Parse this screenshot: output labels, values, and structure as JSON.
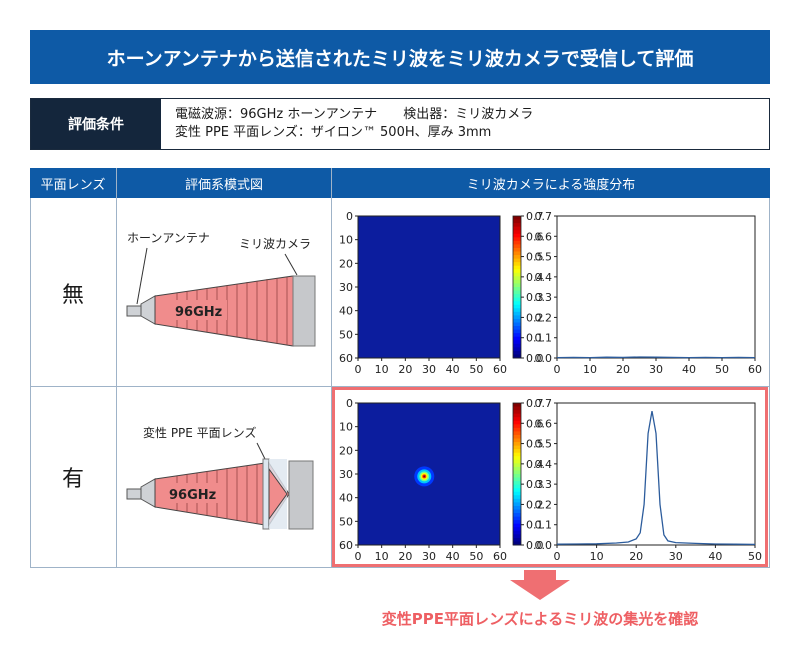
{
  "title": "ホーンアンテナから送信されたミリ波をミリ波カメラで受信して評価",
  "conditions": {
    "label": "評価条件",
    "line1_a": "電磁波源：96GHz ホーンアンテナ",
    "line1_b": "検出器：ミリ波カメラ",
    "line2": "変性 PPE 平面レンズ：ザイロン™ 500H、厚み 3mm"
  },
  "table": {
    "headers": [
      "平面レンズ",
      "評価系模式図",
      "ミリ波カメラによる強度分布"
    ],
    "rows": [
      {
        "label": "無",
        "diagram": {
          "antenna_label": "ホーンアンテナ",
          "camera_label": "ミリ波カメラ",
          "freq_label": "96GHz"
        }
      },
      {
        "label": "有",
        "diagram": {
          "lens_label": "変性 PPE 平面レンズ",
          "freq_label": "96GHz"
        }
      }
    ]
  },
  "colors": {
    "title_bg": "#0e5aa6",
    "condition_bg": "#14263c",
    "beam": "#f08c8c",
    "highlight": "#ef6f72",
    "heatmap_bg": "#0c1d9e",
    "line": "#2c5c9c"
  },
  "chart_data": [
    {
      "type": "heatmap",
      "caption": "平面レンズ 無",
      "xlim": [
        0,
        60
      ],
      "ylim": [
        0,
        60
      ],
      "xticks": [
        0,
        10,
        20,
        30,
        40,
        50,
        60
      ],
      "yticks": [
        0,
        10,
        20,
        30,
        40,
        50,
        60
      ],
      "colorbar": {
        "range": [
          0,
          0.7
        ],
        "ticks": [
          "0.0",
          "0.1",
          "0.2",
          "0.3",
          "0.4",
          "0.5",
          "0.6",
          "0.7"
        ]
      },
      "hotspot": null
    },
    {
      "type": "line",
      "caption": "平面レンズ 無",
      "xlim": [
        0,
        60
      ],
      "ylim": [
        0,
        0.7
      ],
      "xticks": [
        0,
        10,
        20,
        30,
        40,
        50,
        60
      ],
      "yticks": [
        "0.0",
        "0.1",
        "0.2",
        "0.3",
        "0.4",
        "0.5",
        "0.6",
        "0.7"
      ],
      "x": [
        0,
        5,
        10,
        15,
        20,
        25,
        30,
        35,
        40,
        45,
        50,
        55,
        60
      ],
      "y": [
        0.002,
        0.003,
        0.002,
        0.004,
        0.003,
        0.005,
        0.004,
        0.003,
        0.002,
        0.003,
        0.002,
        0.003,
        0.002
      ]
    },
    {
      "type": "heatmap",
      "caption": "平面レンズ 有",
      "xlim": [
        0,
        60
      ],
      "ylim": [
        0,
        60
      ],
      "xticks": [
        0,
        10,
        20,
        30,
        40,
        50,
        60
      ],
      "yticks": [
        0,
        10,
        20,
        30,
        40,
        50,
        60
      ],
      "colorbar": {
        "range": [
          0,
          0.7
        ],
        "ticks": [
          "0.0",
          "0.1",
          "0.2",
          "0.3",
          "0.4",
          "0.5",
          "0.6",
          "0.7"
        ]
      },
      "hotspot": {
        "x": 28,
        "y": 31,
        "value": 0.66
      }
    },
    {
      "type": "line",
      "caption": "平面レンズ 有",
      "xlim": [
        0,
        50
      ],
      "ylim": [
        0,
        0.7
      ],
      "xticks": [
        0,
        10,
        20,
        30,
        40,
        50
      ],
      "yticks": [
        "0.0",
        "0.1",
        "0.2",
        "0.3",
        "0.4",
        "0.5",
        "0.6",
        "0.7"
      ],
      "x": [
        0,
        5,
        10,
        15,
        18,
        20,
        21,
        22,
        23,
        24,
        25,
        26,
        27,
        28,
        30,
        35,
        40,
        45,
        50
      ],
      "y": [
        0.004,
        0.005,
        0.006,
        0.01,
        0.015,
        0.03,
        0.06,
        0.2,
        0.55,
        0.66,
        0.55,
        0.2,
        0.05,
        0.02,
        0.012,
        0.008,
        0.005,
        0.004,
        0.003
      ]
    }
  ],
  "conclusion": "変性PPE平面レンズによるミリ波の集光を確認"
}
